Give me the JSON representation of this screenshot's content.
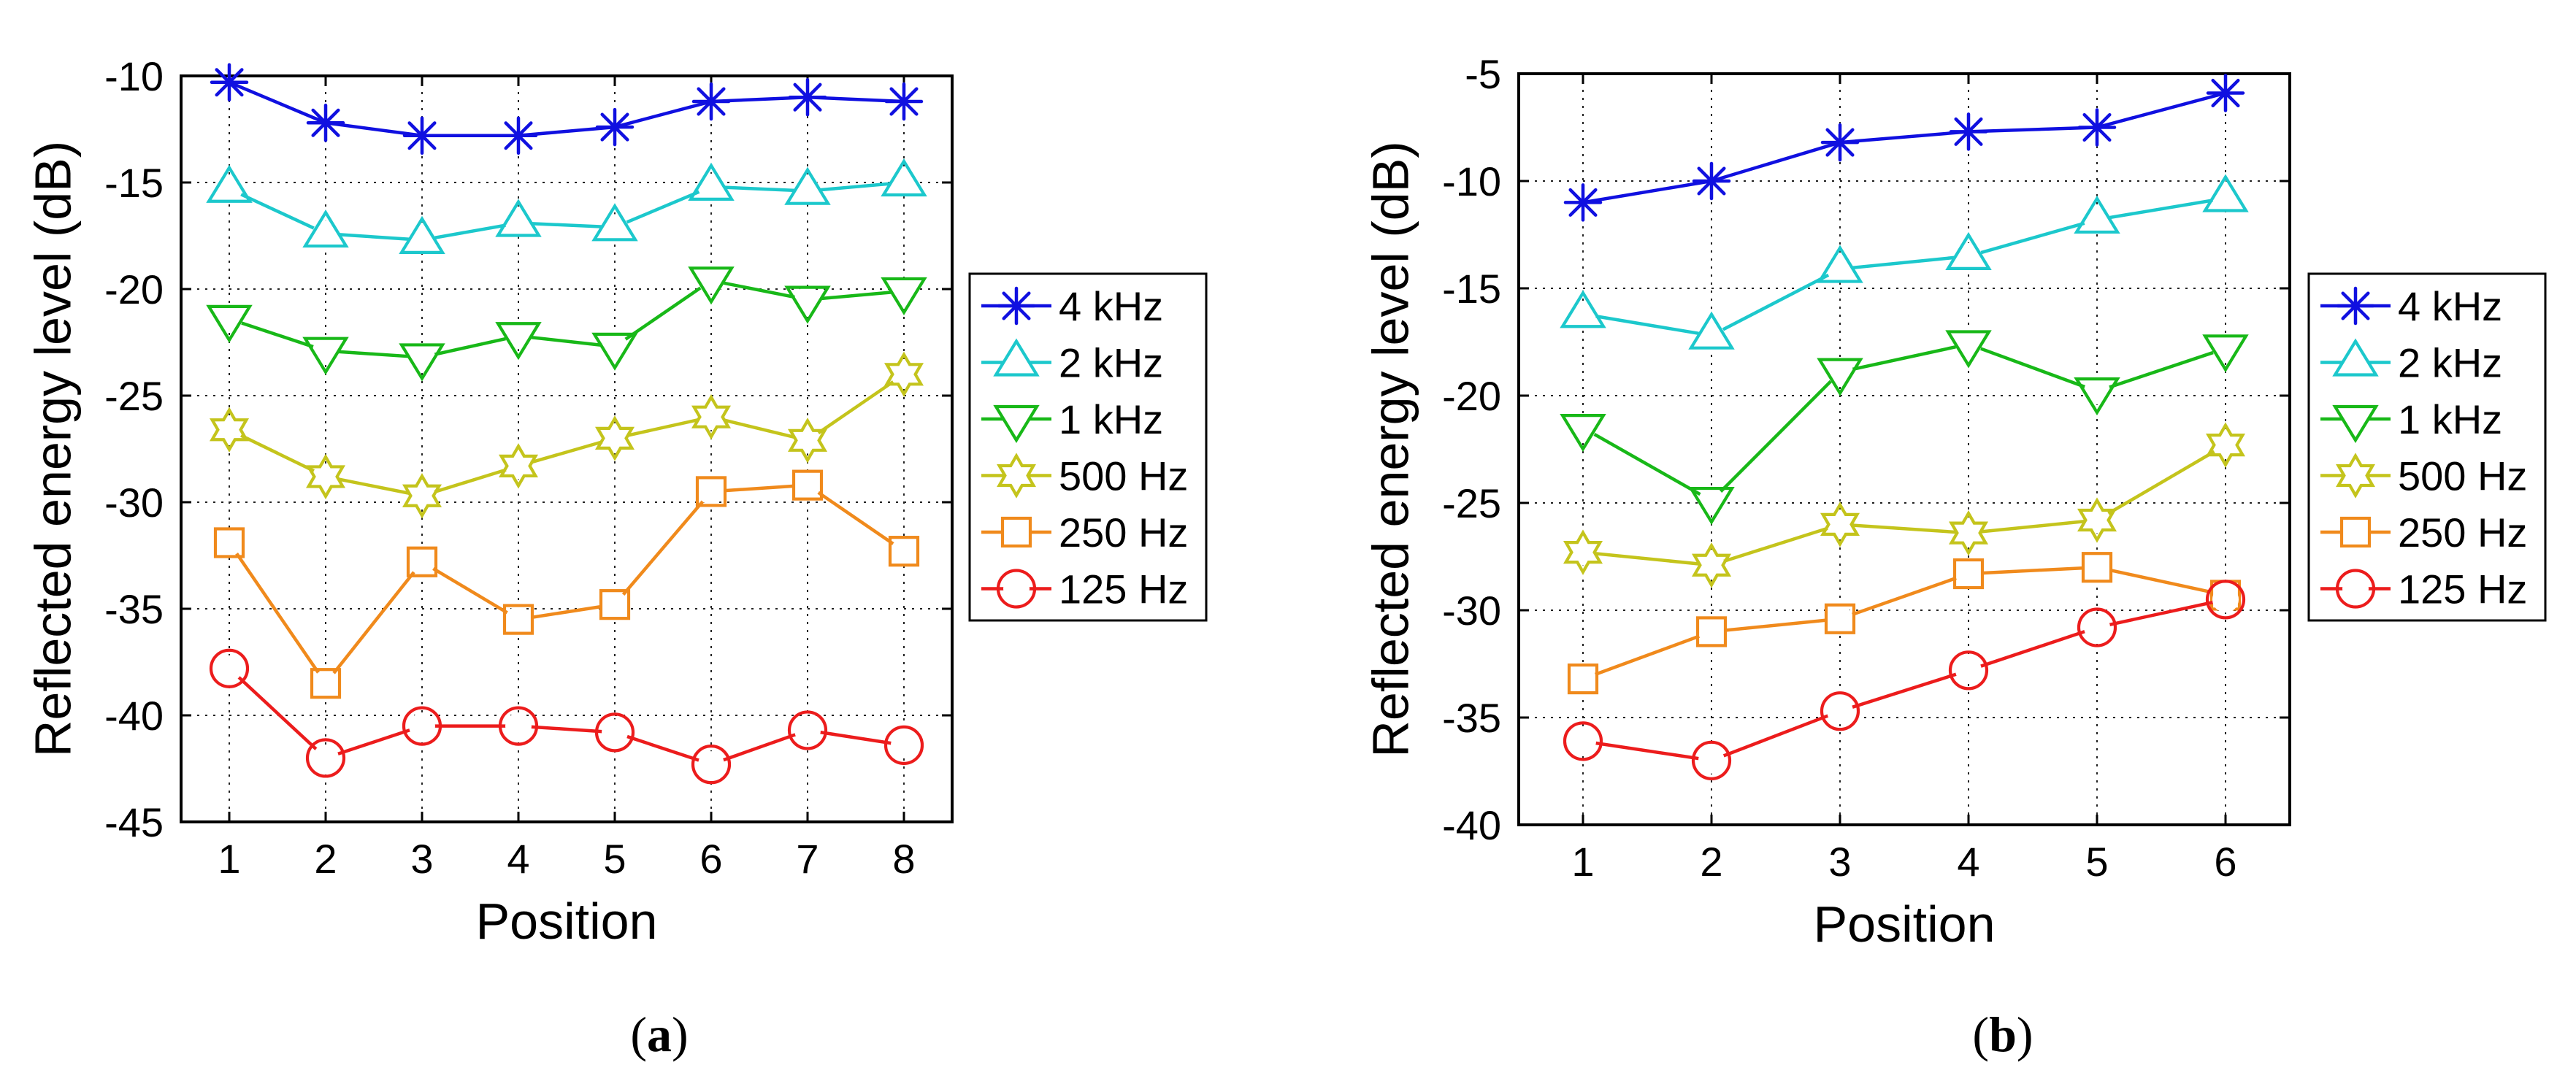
{
  "colors": {
    "4 kHz": "#1010e0",
    "2 kHz": "#1cc8cc",
    "1 kHz": "#18b818",
    "500 Hz": "#c4c41c",
    "250 Hz": "#f08a1c",
    "125 Hz": "#ec1c1c"
  },
  "markers": {
    "4 kHz": "asterisk",
    "2 kHz": "triangle-up",
    "1 kHz": "triangle-down",
    "500 Hz": "hexagram",
    "250 Hz": "square",
    "125 Hz": "circle"
  },
  "chart_data": [
    {
      "type": "line",
      "panel": "a",
      "caption": "(a)",
      "xlabel": "Position",
      "ylabel": "Reflected energy level (dB)",
      "x": [
        1,
        2,
        3,
        4,
        5,
        6,
        7,
        8
      ],
      "xlim": [
        0.5,
        8.5
      ],
      "ylim": [
        -45,
        -10
      ],
      "yticks": [
        -45,
        -40,
        -35,
        -30,
        -25,
        -20,
        -15,
        -10
      ],
      "xtick_labels": [
        "1",
        "2",
        "3",
        "4",
        "5",
        "6",
        "7",
        "8"
      ],
      "ytick_labels": [
        "-45",
        "-40",
        "-35",
        "-30",
        "-25",
        "-20",
        "-15",
        "-10"
      ],
      "grid": true,
      "legend_position": "right",
      "series": [
        {
          "name": "4 kHz",
          "values": [
            -10.3,
            -12.2,
            -12.8,
            -12.8,
            -12.4,
            -11.2,
            -11.0,
            -11.2
          ]
        },
        {
          "name": "2 kHz",
          "values": [
            -15.3,
            -17.4,
            -17.7,
            -16.9,
            -17.1,
            -15.2,
            -15.4,
            -15.0
          ]
        },
        {
          "name": "1 kHz",
          "values": [
            -21.4,
            -22.9,
            -23.2,
            -22.2,
            -22.7,
            -19.6,
            -20.5,
            -20.1
          ]
        },
        {
          "name": "500 Hz",
          "values": [
            -26.6,
            -28.8,
            -29.7,
            -28.3,
            -27.0,
            -26.0,
            -27.1,
            -24.0
          ]
        },
        {
          "name": "250 Hz",
          "values": [
            -31.9,
            -38.5,
            -32.8,
            -35.5,
            -34.8,
            -29.5,
            -29.2,
            -32.3
          ]
        },
        {
          "name": "125 Hz",
          "values": [
            -37.8,
            -42.0,
            -40.5,
            -40.5,
            -40.8,
            -42.3,
            -40.7,
            -41.4
          ]
        }
      ]
    },
    {
      "type": "line",
      "panel": "b",
      "caption": "(b)",
      "xlabel": "Position",
      "ylabel": "Reflected energy level (dB)",
      "x": [
        1,
        2,
        3,
        4,
        5,
        6
      ],
      "xlim": [
        0.5,
        6.5
      ],
      "ylim": [
        -40,
        -5
      ],
      "yticks": [
        -40,
        -35,
        -30,
        -25,
        -20,
        -15,
        -10,
        -5
      ],
      "xtick_labels": [
        "1",
        "2",
        "3",
        "4",
        "5",
        "6"
      ],
      "ytick_labels": [
        "-40",
        "-35",
        "-30",
        "-25",
        "-20",
        "-15",
        "-10",
        "-5"
      ],
      "grid": true,
      "legend_position": "right",
      "series": [
        {
          "name": "4 kHz",
          "values": [
            -11.0,
            -10.0,
            -8.2,
            -7.7,
            -7.5,
            -5.9
          ]
        },
        {
          "name": "2 kHz",
          "values": [
            -16.2,
            -17.2,
            -14.1,
            -13.5,
            -11.8,
            -10.8
          ]
        },
        {
          "name": "1 kHz",
          "values": [
            -21.5,
            -24.9,
            -18.9,
            -17.6,
            -19.8,
            -17.8
          ]
        },
        {
          "name": "500 Hz",
          "values": [
            -27.3,
            -27.9,
            -26.0,
            -26.4,
            -25.8,
            -22.3
          ]
        },
        {
          "name": "250 Hz",
          "values": [
            -33.2,
            -31.0,
            -30.4,
            -28.3,
            -28.0,
            -29.3
          ]
        },
        {
          "name": "125 Hz",
          "values": [
            -36.1,
            -37.0,
            -34.7,
            -32.8,
            -30.8,
            -29.5
          ]
        }
      ]
    }
  ]
}
